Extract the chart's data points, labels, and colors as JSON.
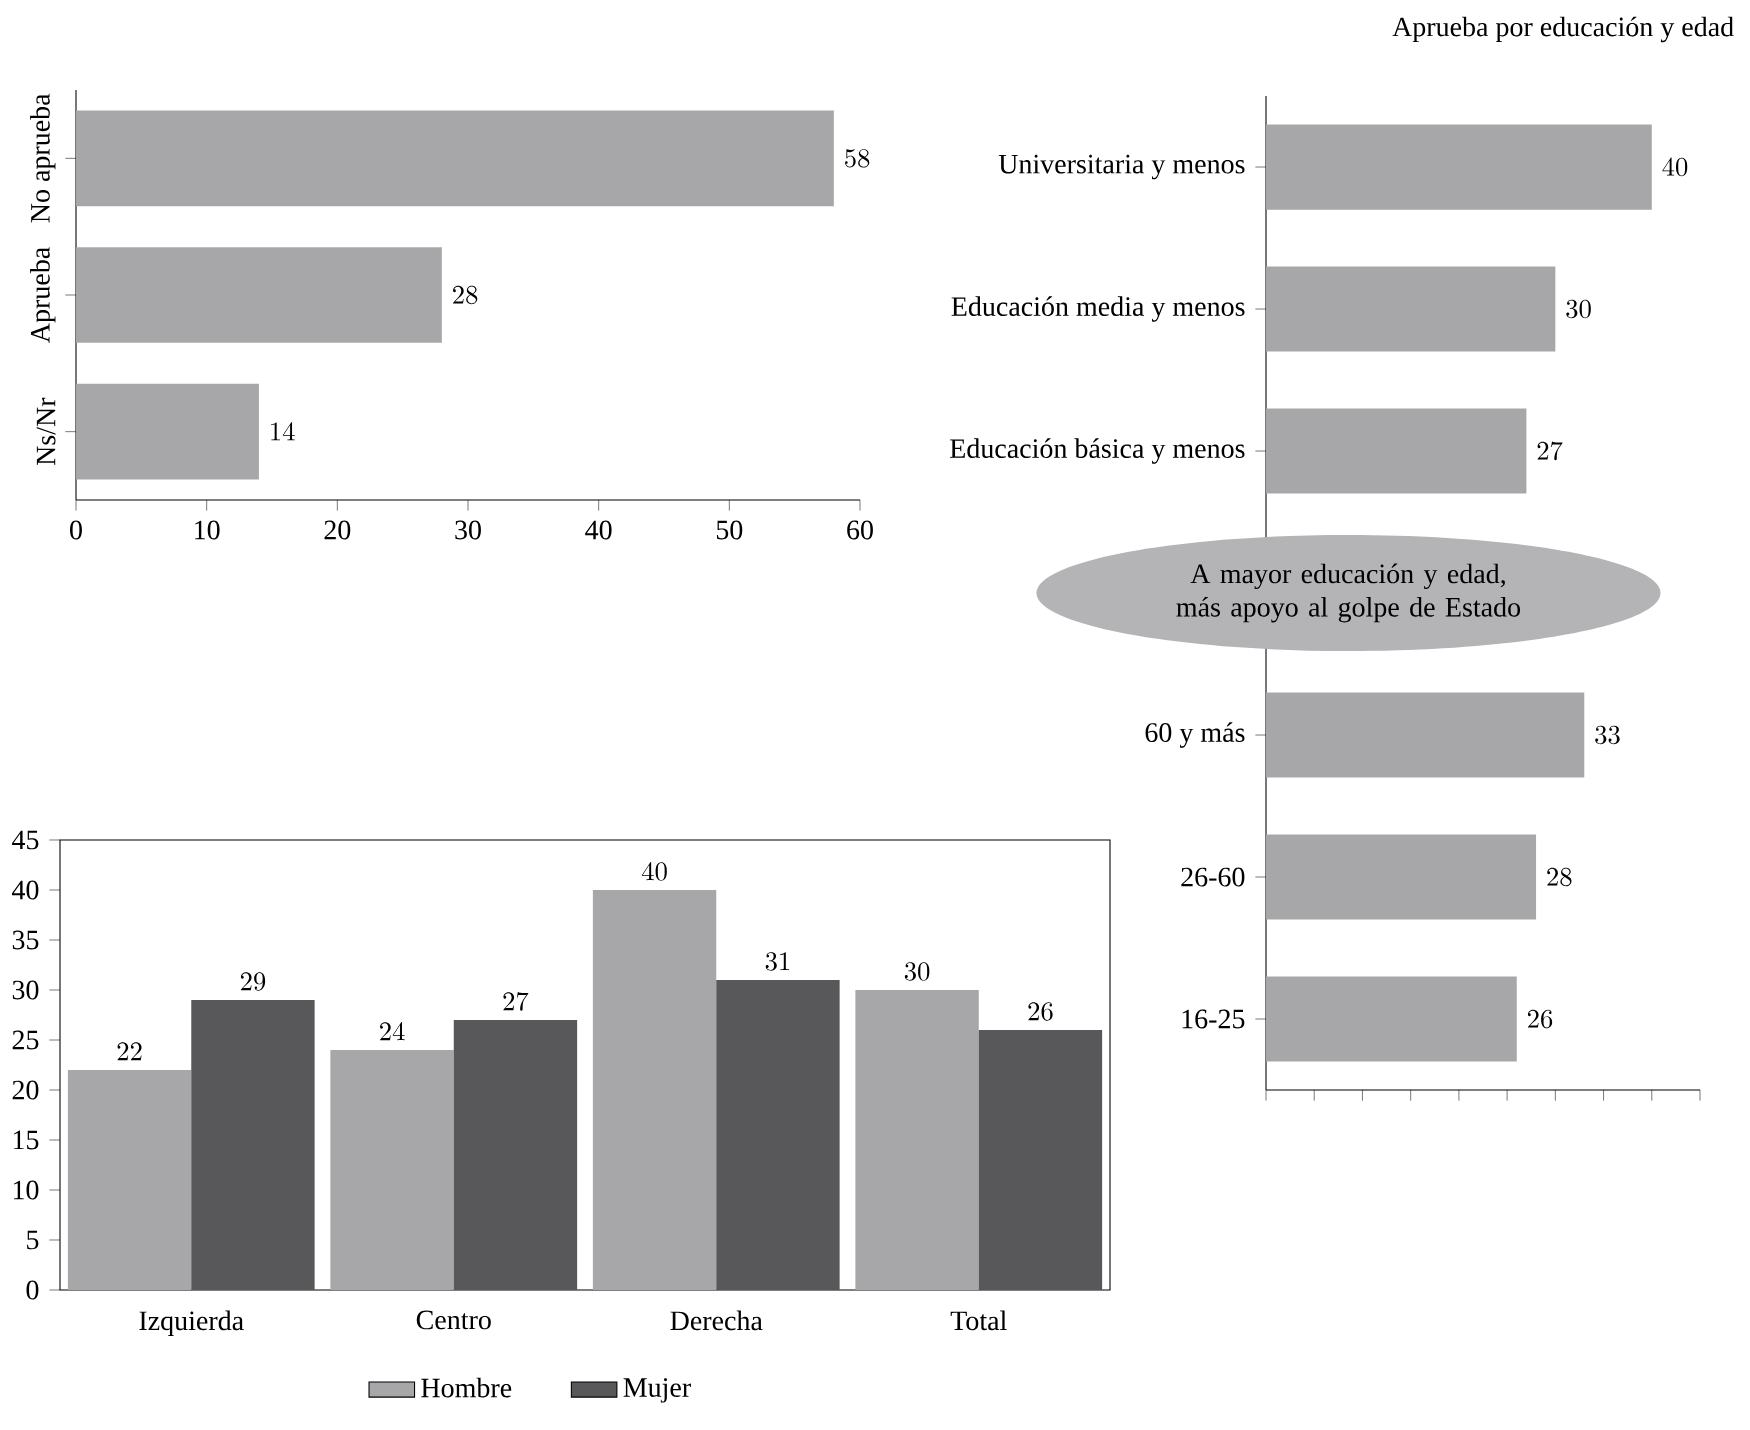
{
  "chart_data": [
    {
      "type": "bar",
      "orientation": "horizontal",
      "categories": [
        "No aprueba",
        "Aprueba",
        "Ns/Nr"
      ],
      "values": [
        58,
        28,
        14
      ],
      "color": "#a7a7a9",
      "xlim": [
        0,
        60
      ],
      "xticks": [
        0,
        10,
        20,
        30,
        40,
        50,
        60
      ],
      "data_labels": true
    },
    {
      "type": "bar",
      "orientation": "horizontal",
      "title": "Aprueba por educación y edad",
      "categories": [
        "Universitaria y menos",
        "Educación media y menos",
        "Educación básica y menos",
        null,
        "60 y más",
        "26-60",
        "16-25"
      ],
      "values": [
        40,
        30,
        27,
        null,
        33,
        28,
        26
      ],
      "color": "#a7a7a9",
      "xlim": [
        0,
        45
      ],
      "xticks": [
        {
          "value": 0,
          "label": null
        },
        {
          "value": 5,
          "label": null
        },
        {
          "value": 10,
          "label": null
        },
        {
          "value": 15,
          "label": null
        },
        {
          "value": 20,
          "label": null
        },
        {
          "value": 25,
          "label": null
        },
        {
          "value": 30,
          "label": null
        },
        {
          "value": 35,
          "label": null
        },
        {
          "value": 40,
          "label": null
        },
        {
          "value": 45,
          "label": null
        }
      ],
      "tick_labels": "y",
      "data_labels": true,
      "annotations": [
        "A mayor educación y edad, más apoyo al golpe de Estado"
      ]
    },
    {
      "type": "bar",
      "categories": [
        "Izquierda",
        "Centro",
        "Derecha",
        "Total"
      ],
      "series": [
        {
          "name": "Hombre",
          "color": "#a7a7a9",
          "values": [
            22,
            24,
            40,
            30
          ]
        },
        {
          "name": "Mujer",
          "color": "#58585a",
          "values": [
            29,
            27,
            31,
            26
          ]
        }
      ],
      "ylim": [
        0,
        45
      ],
      "yticks": [
        0,
        5,
        10,
        15,
        20,
        25,
        30,
        35,
        40,
        45
      ],
      "data_labels": true,
      "legend": "bottom"
    }
  ]
}
